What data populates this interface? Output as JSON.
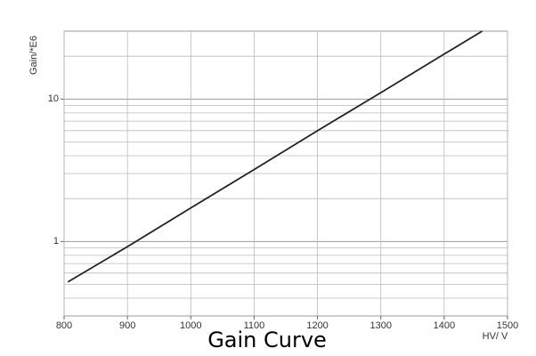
{
  "chart_data": {
    "type": "line",
    "title": "Gain Curve",
    "x_label": "HV/ V",
    "y_label": "Gain/*E6",
    "x": [
      806,
      900,
      1000,
      1100,
      1200,
      1300,
      1400,
      1460
    ],
    "values": [
      0.52,
      0.92,
      1.72,
      3.2,
      6.0,
      11.1,
      20.7,
      30
    ],
    "color": "#222222",
    "xlim": [
      800,
      1500
    ],
    "xticks": [
      800,
      900,
      1000,
      1100,
      1200,
      1300,
      1400,
      1500
    ],
    "ylim": [
      0.3,
      30
    ],
    "yticks": [
      1,
      10
    ],
    "y_log": true,
    "grid": true,
    "minor_grid": true
  }
}
